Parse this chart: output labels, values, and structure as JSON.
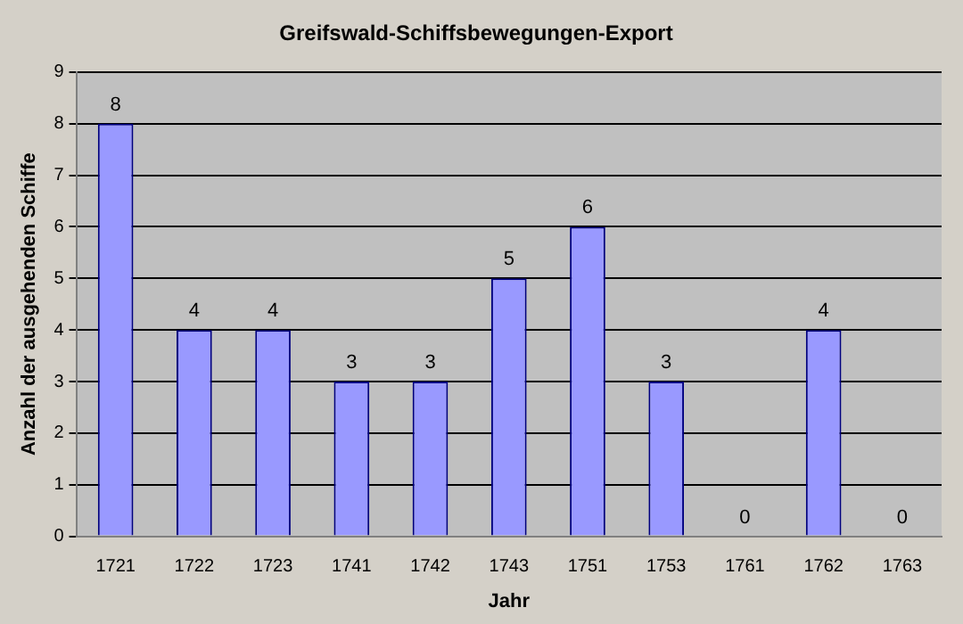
{
  "chart_data": {
    "type": "bar",
    "title": "Greifswald-Schiffsbewegungen-Export",
    "xlabel": "Jahr",
    "ylabel": "Anzahl der ausgehenden Schiffe",
    "categories": [
      "1721",
      "1722",
      "1723",
      "1741",
      "1742",
      "1743",
      "1751",
      "1753",
      "1761",
      "1762",
      "1763"
    ],
    "values": [
      8,
      4,
      4,
      3,
      3,
      5,
      6,
      3,
      0,
      4,
      0
    ],
    "color": "#9999ff",
    "ylim": [
      0,
      9
    ],
    "yticks": [
      0,
      1,
      2,
      3,
      4,
      5,
      6,
      7,
      8,
      9
    ],
    "grid": "y",
    "data_labels": true,
    "legend": false
  }
}
